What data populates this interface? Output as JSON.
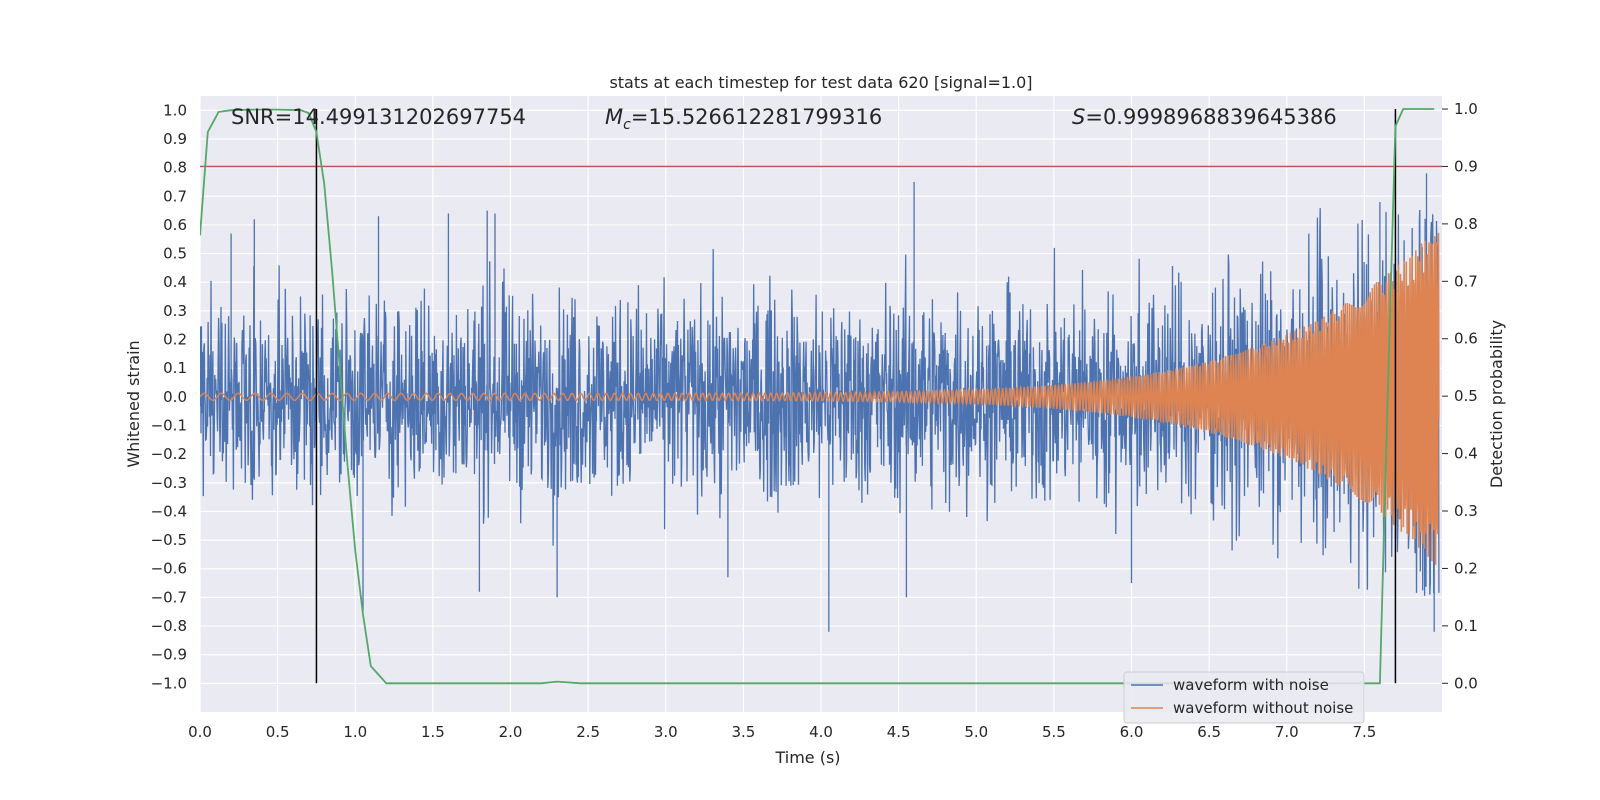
{
  "chart_data": {
    "type": "line",
    "title": "stats at each timestep for test data 620 [signal=1.0]",
    "xlabel": "Time (s)",
    "ylabel": "Whitened strain",
    "ylabel_right": "Detection probability",
    "xlim": [
      0.0,
      8.0
    ],
    "ylim": [
      -1.1,
      1.05
    ],
    "ylim_right": [
      -0.05,
      1.0227
    ],
    "xticks": [
      "0.0",
      "0.5",
      "1.0",
      "1.5",
      "2.0",
      "2.5",
      "3.0",
      "3.5",
      "4.0",
      "4.5",
      "5.0",
      "5.5",
      "6.0",
      "6.5",
      "7.0",
      "7.5"
    ],
    "xtick_values": [
      0.0,
      0.5,
      1.0,
      1.5,
      2.0,
      2.5,
      3.0,
      3.5,
      4.0,
      4.5,
      5.0,
      5.5,
      6.0,
      6.5,
      7.0,
      7.5
    ],
    "yticks": [
      "1.0",
      "0.9",
      "0.8",
      "0.7",
      "0.6",
      "0.5",
      "0.4",
      "0.3",
      "0.2",
      "0.1",
      "0.0",
      "−0.1",
      "−0.2",
      "−0.3",
      "−0.4",
      "−0.5",
      "−0.6",
      "−0.7",
      "−0.8",
      "−0.9",
      "−1.0"
    ],
    "ytick_values": [
      1.0,
      0.9,
      0.8,
      0.7,
      0.6,
      0.5,
      0.4,
      0.3,
      0.2,
      0.1,
      0.0,
      -0.1,
      -0.2,
      -0.3,
      -0.4,
      -0.5,
      -0.6,
      -0.7,
      -0.8,
      -0.9,
      -1.0
    ],
    "yticks_right": [
      "1.0",
      "0.9",
      "0.8",
      "0.7",
      "0.6",
      "0.5",
      "0.4",
      "0.3",
      "0.2",
      "0.1",
      "0.0"
    ],
    "ytick_right_values": [
      1.0,
      0.9,
      0.8,
      0.7,
      0.6,
      0.5,
      0.4,
      0.3,
      0.2,
      0.1,
      0.0
    ],
    "annotations": {
      "snr": "SNR=14.499131202697754",
      "mc_symbol": "M",
      "mc_sub": "c",
      "mc_value": "=15.526612281799316",
      "s_symbol": "S",
      "s_value": "=0.9998968839645386"
    },
    "threshold_line": {
      "value_right_axis": 0.9,
      "color": "#c44e52"
    },
    "vertical_lines": [
      0.75,
      7.7
    ],
    "noisy_envelope": {
      "t": [
        0.0,
        0.5,
        1.0,
        2.0,
        3.0,
        4.0,
        5.0,
        6.0,
        6.5,
        7.0,
        7.5,
        7.8,
        8.0
      ],
      "amp": [
        0.3,
        0.32,
        0.32,
        0.32,
        0.32,
        0.33,
        0.33,
        0.34,
        0.35,
        0.38,
        0.45,
        0.6,
        0.7
      ],
      "peaks": [
        [
          0.2,
          0.57
        ],
        [
          0.35,
          0.62
        ],
        [
          1.15,
          0.63
        ],
        [
          1.6,
          0.64
        ],
        [
          1.85,
          0.65
        ],
        [
          1.9,
          0.64
        ],
        [
          4.6,
          0.75
        ],
        [
          4.05,
          -0.82
        ],
        [
          2.3,
          -0.7
        ],
        [
          1.8,
          -0.68
        ],
        [
          6.0,
          -0.65
        ],
        [
          7.6,
          0.68
        ],
        [
          7.9,
          0.78
        ],
        [
          7.95,
          -0.82
        ],
        [
          1.05,
          -0.75
        ],
        [
          3.4,
          -0.63
        ],
        [
          4.55,
          -0.7
        ]
      ]
    },
    "clean_waveform": {
      "t_start": 0.0,
      "t_end": 7.98,
      "amp_start": 0.012,
      "amp_end": 0.6,
      "cycles_approx": 140
    },
    "detection_probability": {
      "t": [
        0.0,
        0.05,
        0.12,
        0.2,
        0.35,
        0.5,
        0.65,
        0.7,
        0.75,
        0.8,
        0.85,
        0.9,
        0.95,
        1.0,
        1.05,
        1.1,
        1.2,
        2.2,
        2.3,
        2.45,
        7.5,
        7.6,
        7.65,
        7.7,
        7.75,
        7.95
      ],
      "p": [
        0.78,
        0.96,
        0.995,
        0.998,
        0.999,
        0.999,
        0.998,
        0.993,
        0.96,
        0.87,
        0.72,
        0.55,
        0.38,
        0.23,
        0.12,
        0.03,
        0.0,
        0.0,
        0.003,
        0.0,
        0.0,
        0.0,
        0.5,
        0.97,
        1.0,
        1.0
      ]
    },
    "series": [
      {
        "name": "waveform with noise",
        "color": "#4c72b0"
      },
      {
        "name": "waveform without noise",
        "color": "#dd8452"
      },
      {
        "name": "detection probability",
        "color": "#55a868"
      }
    ],
    "legend_position": "lower-right",
    "grid": true
  },
  "colors": {
    "axes_bg": "#eaeaf2",
    "grid": "#ffffff",
    "noisy": "#4c72b0",
    "clean": "#dd8452",
    "prob": "#55a868",
    "threshold": "#c44e52",
    "vline": "#000000"
  }
}
